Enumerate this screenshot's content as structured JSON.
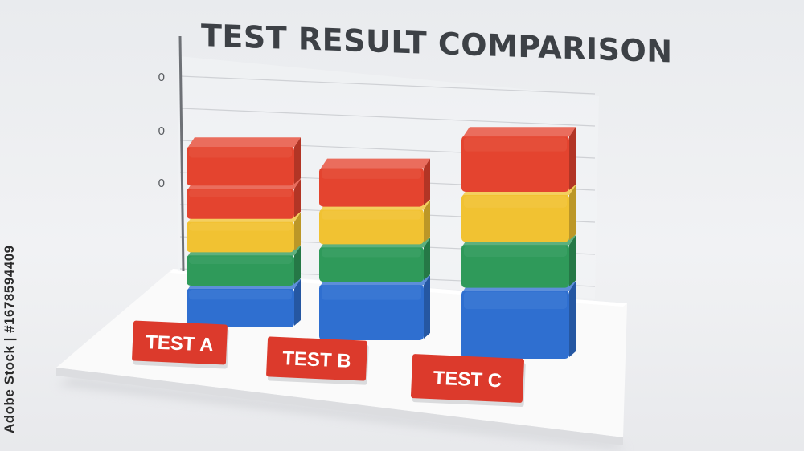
{
  "chart_data": {
    "type": "bar",
    "stacked": true,
    "title": "TEST RESULT COMPARISON",
    "categories": [
      "TEST A",
      "TEST B",
      "TEST C"
    ],
    "series": [
      {
        "color": "#2f6fd0",
        "values": [
          1,
          1.4,
          1.7
        ]
      },
      {
        "color": "#2f9a5a",
        "values": [
          0.8,
          0.9,
          1.1
        ]
      },
      {
        "color": "#f1c232",
        "values": [
          0.8,
          0.9,
          1.2
        ]
      },
      {
        "color": "#e4442f",
        "values": [
          0.8,
          0,
          0
        ]
      },
      {
        "color": "#e4442f",
        "values": [
          1,
          1,
          1.4
        ]
      }
    ],
    "y_ticks": [
      "0",
      "0",
      "0"
    ],
    "grid": true,
    "xlabel": "",
    "ylabel": ""
  },
  "watermark": "Adobe Stock | #1678594409",
  "colors": {
    "background": "#eceef1",
    "platform": "#fafafa",
    "label_fill": "#dc3a2c",
    "title": "#3d4146"
  }
}
